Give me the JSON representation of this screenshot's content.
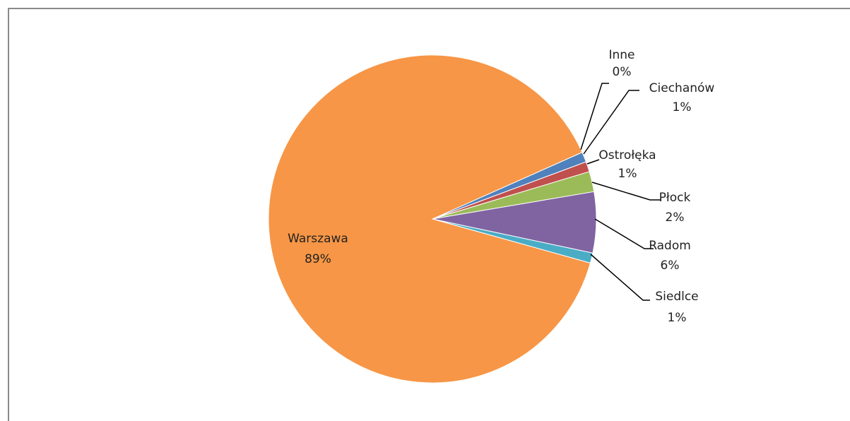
{
  "chart_data": {
    "type": "pie",
    "categories": [
      "Inne",
      "Ciechanów",
      "Ostrołęka",
      "Płock",
      "Radom",
      "Siedlce",
      "Warszawa"
    ],
    "values": [
      0,
      1,
      1,
      2,
      6,
      1,
      89
    ],
    "value_labels": [
      "0%",
      "1%",
      "1%",
      "2%",
      "6%",
      "1%",
      "89%"
    ],
    "colors": [
      "#2c4d75",
      "#4f81bd",
      "#c0504d",
      "#9bbb59",
      "#8064a2",
      "#4bacc6",
      "#f79646"
    ]
  }
}
